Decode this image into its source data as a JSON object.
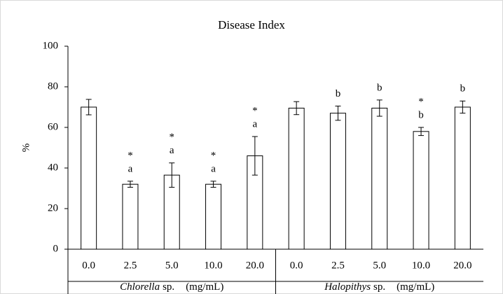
{
  "chart_data": {
    "type": "bar",
    "title": "Disease Index",
    "y_label": "%",
    "ylim": [
      0,
      100
    ],
    "yticks": [
      0,
      20,
      40,
      60,
      80,
      100
    ],
    "color": "#ffffff",
    "edge_color": "#000000",
    "groups": [
      {
        "name": "Chlorella",
        "suffix": "sp.",
        "unit": "(mg/mL)",
        "categories": [
          "0.0",
          "2.5",
          "5.0",
          "10.0",
          "20.0"
        ],
        "values": [
          70,
          32,
          36.5,
          32,
          46
        ],
        "errors": [
          3.8,
          1.5,
          6,
          1.5,
          9.5
        ],
        "letters": [
          null,
          "a",
          "a",
          "a",
          "a"
        ],
        "significance": [
          null,
          "*",
          "*",
          "*",
          "*"
        ]
      },
      {
        "name": "Halopithys",
        "suffix": "sp.",
        "unit": "(mg/mL)",
        "categories": [
          "0.0",
          "2.5",
          "5.0",
          "10.0",
          "20.0"
        ],
        "values": [
          69.5,
          67,
          69.5,
          58,
          70
        ],
        "errors": [
          3.2,
          3.5,
          4,
          2,
          3
        ],
        "letters": [
          null,
          "b",
          "b",
          "b",
          "b"
        ],
        "significance": [
          null,
          null,
          null,
          "*",
          null
        ]
      }
    ]
  }
}
